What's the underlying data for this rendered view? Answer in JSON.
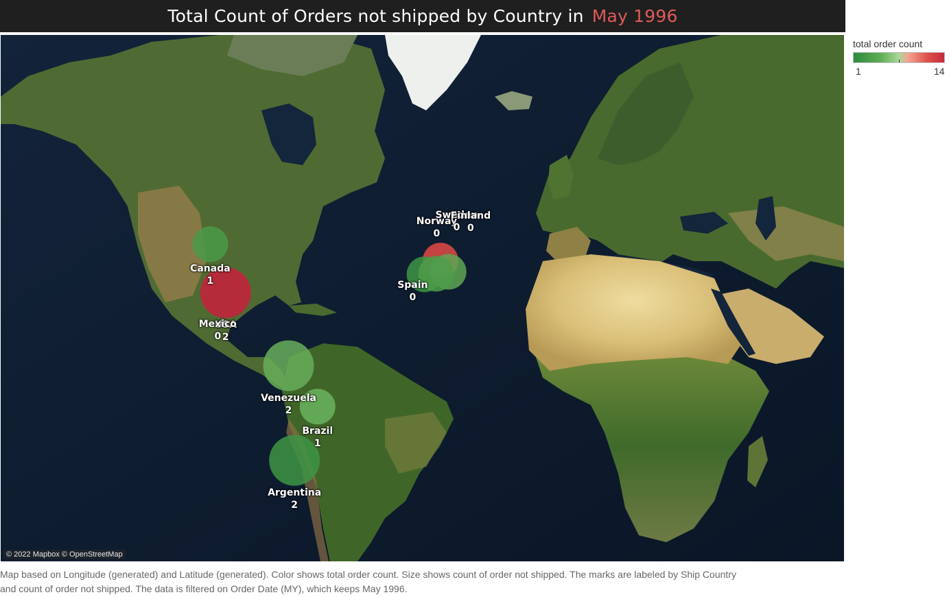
{
  "title": {
    "text": "Total Count of Orders not shipped by Country in",
    "period": "May 1996"
  },
  "map": {
    "attribution": "© 2022 Mapbox © OpenStreetMap"
  },
  "legend": {
    "title": "total order count",
    "min": "1",
    "max": "14",
    "colors": [
      "#2e8b3f",
      "#a8d899",
      "#f4a394",
      "#c42a3c"
    ]
  },
  "caption": {
    "line1": "Map based on Longitude (generated) and Latitude (generated).  Color shows total order count.  Size shows count of order not shipped.  The marks are labeled by Ship Country",
    "line2": "and count of order not shipped. The data is filtered on Order Date (MY), which keeps May 1996."
  },
  "chart_data": {
    "type": "map",
    "marks": [
      {
        "country": "Canada",
        "lon": -106.3,
        "lat": 56.1,
        "not_shipped": "1",
        "color": "#4a9a48"
      },
      {
        "country": "USA",
        "lon": -98.5,
        "lat": 39.8,
        "not_shipped": "2",
        "color": "#c8203c"
      },
      {
        "country": "Mexico",
        "lon": -102.5,
        "lat": 23.6,
        "not_shipped": "0",
        "color": null
      },
      {
        "country": "Venezuela",
        "lon": -66.6,
        "lat": 6.4,
        "not_shipped": "2",
        "color": "#67ad5b"
      },
      {
        "country": "Brazil",
        "lon": -51.9,
        "lat": -14.2,
        "not_shipped": "1",
        "color": "#6ab45e"
      },
      {
        "country": "Argentina",
        "lon": -63.6,
        "lat": -38.4,
        "not_shipped": "2",
        "color": "#3d9444"
      },
      {
        "country": "Spain",
        "lon": -3.7,
        "lat": 40.4,
        "not_shipped": "0",
        "color": null
      },
      {
        "country": "Norway",
        "lon": 8.5,
        "lat": 60.5,
        "not_shipped": "0",
        "color": null
      },
      {
        "country": "Sweden",
        "lon": 18.6,
        "lat": 62.0,
        "not_shipped": "0",
        "color": null
      },
      {
        "country": "Finland",
        "lon": 25.7,
        "lat": 61.9,
        "not_shipped": "0",
        "color": null
      }
    ],
    "unlabeled_marks": [
      {
        "lon": 10.4,
        "lat": 51.2,
        "color": "#e24a44"
      },
      {
        "lon": 2.3,
        "lat": 46.6,
        "color": "#3d9444"
      },
      {
        "lon": 14.5,
        "lat": 47.5,
        "color": "#5ea652"
      },
      {
        "lon": 8.2,
        "lat": 46.8,
        "color": "#4d9c4a"
      }
    ]
  }
}
